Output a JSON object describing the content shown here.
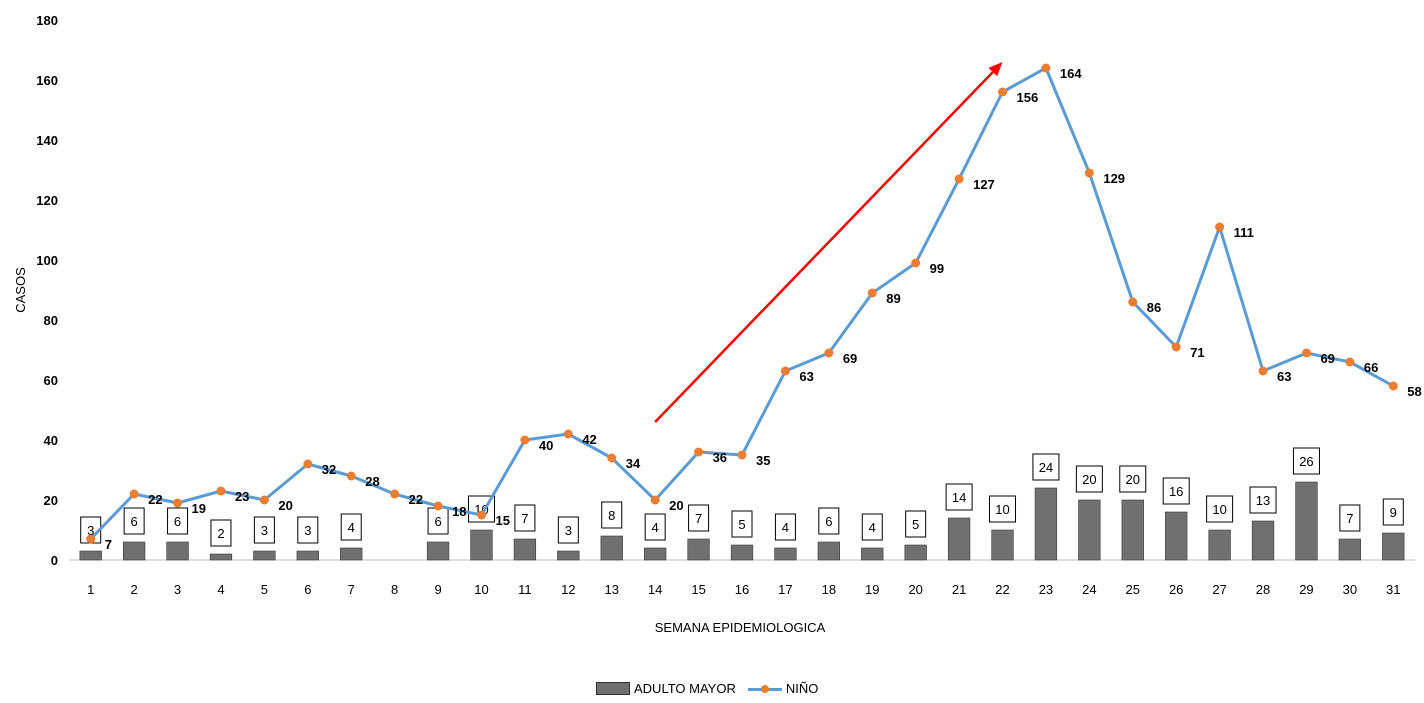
{
  "chart_data": {
    "type": "bar",
    "title": "",
    "xlabel": "SEMANA EPIDEMIOLOGICA",
    "ylabel": "CASOS",
    "ylim": [
      0,
      180
    ],
    "yticks": [
      "0",
      "20",
      "40",
      "60",
      "80",
      "100",
      "120",
      "140",
      "160",
      "180"
    ],
    "categories": [
      "1",
      "2",
      "3",
      "4",
      "5",
      "6",
      "7",
      "8",
      "9",
      "10",
      "11",
      "12",
      "13",
      "14",
      "15",
      "16",
      "17",
      "18",
      "19",
      "20",
      "21",
      "22",
      "23",
      "24",
      "25",
      "26",
      "27",
      "28",
      "29",
      "30",
      "31"
    ],
    "series": [
      {
        "name": "ADULTO MAYOR",
        "type": "bar",
        "color": "#707070",
        "values": [
          3,
          6,
          6,
          2,
          3,
          3,
          4,
          null,
          6,
          10,
          7,
          3,
          8,
          4,
          7,
          5,
          4,
          6,
          4,
          5,
          14,
          10,
          24,
          20,
          20,
          16,
          10,
          13,
          26,
          7,
          9
        ]
      },
      {
        "name": "NIÑO",
        "type": "line",
        "color": "#5b9bd5",
        "marker_color": "#ed7d31",
        "values": [
          7,
          22,
          19,
          23,
          20,
          32,
          28,
          22,
          18,
          15,
          40,
          42,
          34,
          20,
          36,
          35,
          63,
          69,
          89,
          99,
          127,
          156,
          164,
          129,
          86,
          71,
          111,
          63,
          69,
          66,
          58
        ]
      }
    ],
    "annotations": [
      {
        "type": "arrow",
        "color": "#ff0000",
        "from": {
          "x": 14,
          "y": 46
        },
        "to": {
          "x": 22,
          "y": 166
        }
      }
    ],
    "grid": false,
    "legend": "bottom-center"
  }
}
